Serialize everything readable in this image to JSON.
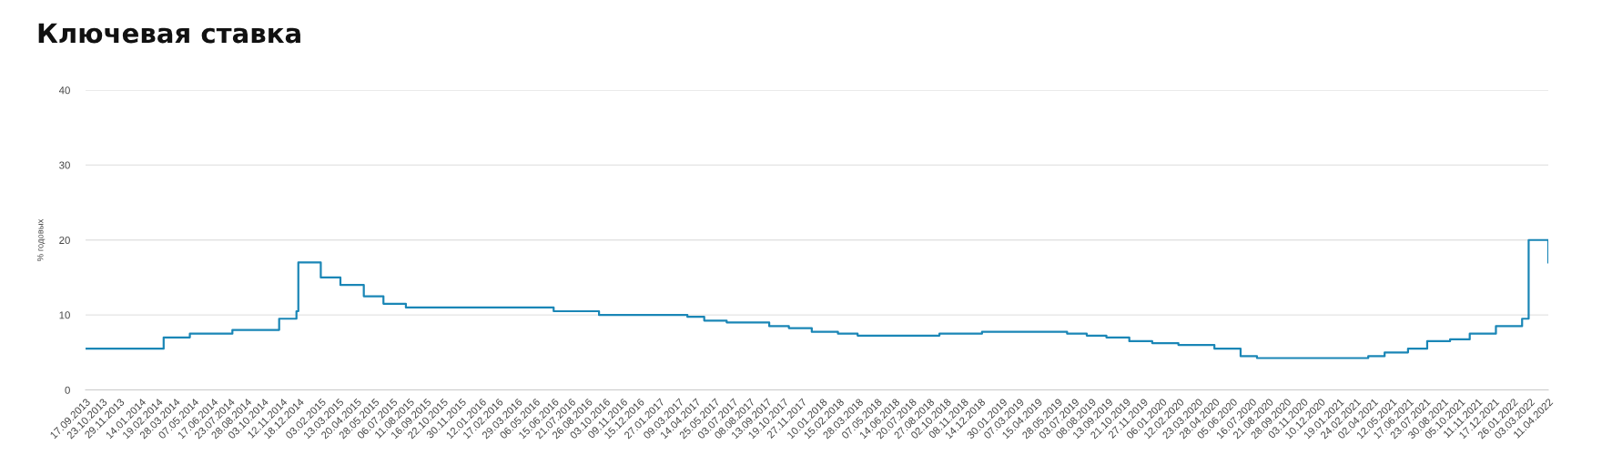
{
  "chart_data": {
    "type": "step",
    "title": "Ключевая ставка",
    "ylabel": "% годовых",
    "color": "#1a86b6",
    "line_style": "solid",
    "grid": "y",
    "x": [
      "2013-09-17",
      "2014-03-03",
      "2014-04-28",
      "2014-07-28",
      "2014-11-05",
      "2014-12-12",
      "2014-12-16",
      "2015-02-02",
      "2015-03-16",
      "2015-05-05",
      "2015-06-16",
      "2015-08-03",
      "2016-06-14",
      "2016-09-19",
      "2017-03-27",
      "2017-05-02",
      "2017-06-19",
      "2017-09-18",
      "2017-10-30",
      "2017-12-18",
      "2018-02-12",
      "2018-03-26",
      "2018-09-17",
      "2018-12-17",
      "2019-06-17",
      "2019-07-29",
      "2019-09-09",
      "2019-10-28",
      "2019-12-16",
      "2020-02-10",
      "2020-04-27",
      "2020-06-22",
      "2020-07-27",
      "2021-03-22",
      "2021-04-26",
      "2021-06-15",
      "2021-07-26",
      "2021-09-13",
      "2021-10-25",
      "2021-12-20",
      "2022-02-14",
      "2022-02-28",
      "2022-04-11"
    ],
    "values": [
      5.5,
      7.0,
      7.5,
      8.0,
      9.5,
      10.5,
      17.0,
      15.0,
      14.0,
      12.5,
      11.5,
      11.0,
      10.5,
      10.0,
      9.75,
      9.25,
      9.0,
      8.5,
      8.25,
      7.75,
      7.5,
      7.25,
      7.5,
      7.75,
      7.5,
      7.25,
      7.0,
      6.5,
      6.25,
      6.0,
      5.5,
      4.5,
      4.25,
      4.5,
      5.0,
      5.5,
      6.5,
      6.75,
      7.5,
      8.5,
      9.5,
      20.0,
      17.0
    ],
    "xlim": [
      "2013-09-17",
      "2022-04-11"
    ],
    "ylim": [
      0,
      40
    ],
    "yticks": [
      0,
      10,
      20,
      30,
      40
    ],
    "xticks": [
      {
        "value": "2013-09-17",
        "label": "17.09.2013"
      },
      {
        "value": "2013-10-23",
        "label": "23.10.2013"
      },
      {
        "value": "2013-11-29",
        "label": "29.11.2013"
      },
      {
        "value": "2014-01-14",
        "label": "14.01.2014"
      },
      {
        "value": "2014-02-19",
        "label": "19.02.2014"
      },
      {
        "value": "2014-03-28",
        "label": "28.03.2014"
      },
      {
        "value": "2014-05-07",
        "label": "07.05.2014"
      },
      {
        "value": "2014-06-17",
        "label": "17.06.2014"
      },
      {
        "value": "2014-07-23",
        "label": "23.07.2014"
      },
      {
        "value": "2014-08-28",
        "label": "28.08.2014"
      },
      {
        "value": "2014-10-03",
        "label": "03.10.2014"
      },
      {
        "value": "2014-11-12",
        "label": "12.11.2014"
      },
      {
        "value": "2014-12-18",
        "label": "18.12.2014"
      },
      {
        "value": "2015-02-03",
        "label": "03.02.2015"
      },
      {
        "value": "2015-03-13",
        "label": "13.03.2015"
      },
      {
        "value": "2015-04-20",
        "label": "20.04.2015"
      },
      {
        "value": "2015-05-28",
        "label": "28.05.2015"
      },
      {
        "value": "2015-07-06",
        "label": "06.07.2015"
      },
      {
        "value": "2015-08-11",
        "label": "11.08.2015"
      },
      {
        "value": "2015-09-16",
        "label": "16.09.2015"
      },
      {
        "value": "2015-10-22",
        "label": "22.10.2015"
      },
      {
        "value": "2015-11-30",
        "label": "30.11.2015"
      },
      {
        "value": "2016-01-12",
        "label": "12.01.2016"
      },
      {
        "value": "2016-02-17",
        "label": "17.02.2016"
      },
      {
        "value": "2016-03-29",
        "label": "29.03.2016"
      },
      {
        "value": "2016-05-06",
        "label": "06.05.2016"
      },
      {
        "value": "2016-06-15",
        "label": "15.06.2016"
      },
      {
        "value": "2016-07-21",
        "label": "21.07.2016"
      },
      {
        "value": "2016-08-26",
        "label": "26.08.2016"
      },
      {
        "value": "2016-10-03",
        "label": "03.10.2016"
      },
      {
        "value": "2016-11-09",
        "label": "09.11.2016"
      },
      {
        "value": "2016-12-15",
        "label": "15.12.2016"
      },
      {
        "value": "2017-01-27",
        "label": "27.01.2017"
      },
      {
        "value": "2017-03-09",
        "label": "09.03.2017"
      },
      {
        "value": "2017-04-14",
        "label": "14.04.2017"
      },
      {
        "value": "2017-05-25",
        "label": "25.05.2017"
      },
      {
        "value": "2017-07-03",
        "label": "03.07.2017"
      },
      {
        "value": "2017-08-08",
        "label": "08.08.2017"
      },
      {
        "value": "2017-09-13",
        "label": "13.09.2017"
      },
      {
        "value": "2017-10-19",
        "label": "19.10.2017"
      },
      {
        "value": "2017-11-27",
        "label": "27.11.2017"
      },
      {
        "value": "2018-01-10",
        "label": "10.01.2018"
      },
      {
        "value": "2018-02-15",
        "label": "15.02.2018"
      },
      {
        "value": "2018-03-28",
        "label": "28.03.2018"
      },
      {
        "value": "2018-05-07",
        "label": "07.05.2018"
      },
      {
        "value": "2018-06-14",
        "label": "14.06.2018"
      },
      {
        "value": "2018-07-20",
        "label": "20.07.2018"
      },
      {
        "value": "2018-08-27",
        "label": "27.08.2018"
      },
      {
        "value": "2018-10-02",
        "label": "02.10.2018"
      },
      {
        "value": "2018-11-08",
        "label": "08.11.2018"
      },
      {
        "value": "2018-12-14",
        "label": "14.12.2018"
      },
      {
        "value": "2019-01-30",
        "label": "30.01.2019"
      },
      {
        "value": "2019-03-07",
        "label": "07.03.2019"
      },
      {
        "value": "2019-04-15",
        "label": "15.04.2019"
      },
      {
        "value": "2019-05-28",
        "label": "28.05.2019"
      },
      {
        "value": "2019-07-03",
        "label": "03.07.2019"
      },
      {
        "value": "2019-08-08",
        "label": "08.08.2019"
      },
      {
        "value": "2019-09-13",
        "label": "13.09.2019"
      },
      {
        "value": "2019-10-21",
        "label": "21.10.2019"
      },
      {
        "value": "2019-11-27",
        "label": "27.11.2019"
      },
      {
        "value": "2020-01-06",
        "label": "06.01.2020"
      },
      {
        "value": "2020-02-12",
        "label": "12.02.2020"
      },
      {
        "value": "2020-03-23",
        "label": "23.03.2020"
      },
      {
        "value": "2020-04-28",
        "label": "28.04.2020"
      },
      {
        "value": "2020-06-05",
        "label": "05.06.2020"
      },
      {
        "value": "2020-07-16",
        "label": "16.07.2020"
      },
      {
        "value": "2020-08-21",
        "label": "21.08.2020"
      },
      {
        "value": "2020-09-28",
        "label": "28.09.2020"
      },
      {
        "value": "2020-11-03",
        "label": "03.11.2020"
      },
      {
        "value": "2020-12-10",
        "label": "10.12.2020"
      },
      {
        "value": "2021-01-19",
        "label": "19.01.2021"
      },
      {
        "value": "2021-02-24",
        "label": "24.02.2021"
      },
      {
        "value": "2021-04-02",
        "label": "02.04.2021"
      },
      {
        "value": "2021-05-12",
        "label": "12.05.2021"
      },
      {
        "value": "2021-06-17",
        "label": "17.06.2021"
      },
      {
        "value": "2021-07-23",
        "label": "23.07.2021"
      },
      {
        "value": "2021-08-30",
        "label": "30.08.2021"
      },
      {
        "value": "2021-10-05",
        "label": "05.10.2021"
      },
      {
        "value": "2021-11-11",
        "label": "11.11.2021"
      },
      {
        "value": "2021-12-17",
        "label": "17.12.2021"
      },
      {
        "value": "2022-01-26",
        "label": "26.01.2022"
      },
      {
        "value": "2022-03-03",
        "label": "03.03.2022"
      },
      {
        "value": "2022-04-11",
        "label": "11.04.2022"
      }
    ]
  }
}
